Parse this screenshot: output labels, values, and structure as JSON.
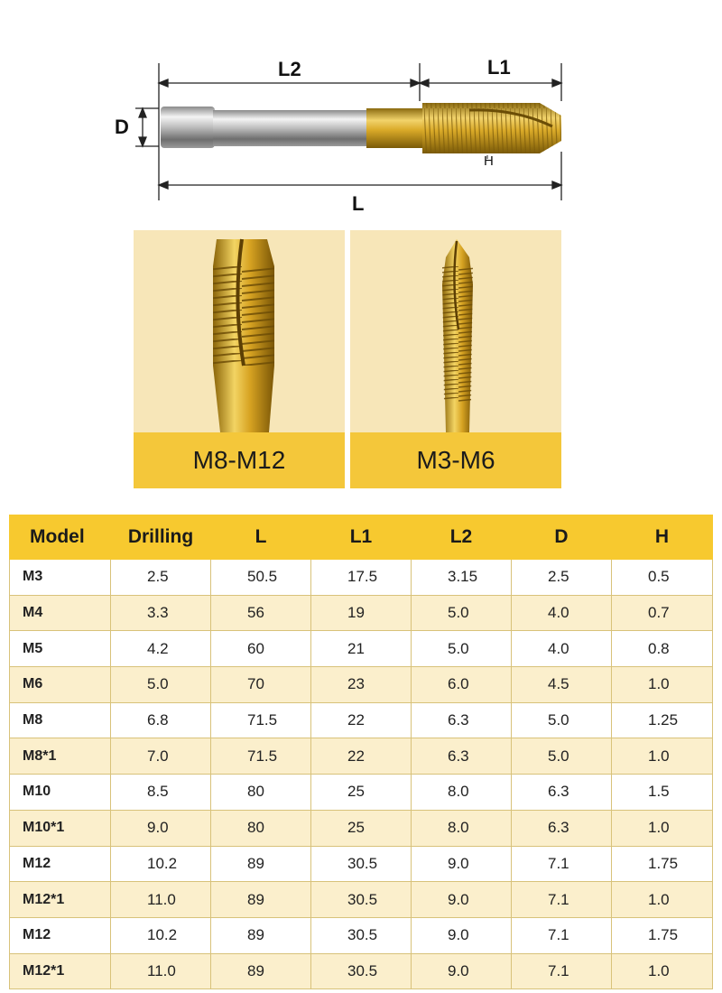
{
  "diagram": {
    "label_l2": "L2",
    "label_l1": "L1",
    "label_d": "D",
    "label_h": "H",
    "label_l": "L"
  },
  "thumbnails": [
    {
      "caption": "M8-M12"
    },
    {
      "caption": "M3-M6"
    }
  ],
  "table": {
    "headers": [
      "Model",
      "Drilling",
      "L",
      "L1",
      "L2",
      "D",
      "H"
    ],
    "rows": [
      [
        "M3",
        "2.5",
        "50.5",
        "17.5",
        "3.15",
        "2.5",
        "0.5"
      ],
      [
        "M4",
        "3.3",
        "56",
        "19",
        "5.0",
        "4.0",
        "0.7"
      ],
      [
        "M5",
        "4.2",
        "60",
        "21",
        "5.0",
        "4.0",
        "0.8"
      ],
      [
        "M6",
        "5.0",
        "70",
        "23",
        "6.0",
        "4.5",
        "1.0"
      ],
      [
        "M8",
        "6.8",
        "71.5",
        "22",
        "6.3",
        "5.0",
        "1.25"
      ],
      [
        "M8*1",
        "7.0",
        "71.5",
        "22",
        "6.3",
        "5.0",
        "1.0"
      ],
      [
        "M10",
        "8.5",
        "80",
        "25",
        "8.0",
        "6.3",
        "1.5"
      ],
      [
        "M10*1",
        "9.0",
        "80",
        "25",
        "8.0",
        "6.3",
        "1.0"
      ],
      [
        "M12",
        "10.2",
        "89",
        "30.5",
        "9.0",
        "7.1",
        "1.75"
      ],
      [
        "M12*1",
        "11.0",
        "89",
        "30.5",
        "9.0",
        "7.1",
        "1.0"
      ],
      [
        "M12",
        "10.2",
        "89",
        "30.5",
        "9.0",
        "7.1",
        "1.75"
      ],
      [
        "M12*1",
        "11.0",
        "89",
        "30.5",
        "9.0",
        "7.1",
        "1.0"
      ]
    ]
  },
  "colors": {
    "gold": "#f4c73a",
    "header": "#f7c92f",
    "stripe": "#fbefcc",
    "thumb_bg": "#f7e6b8"
  }
}
